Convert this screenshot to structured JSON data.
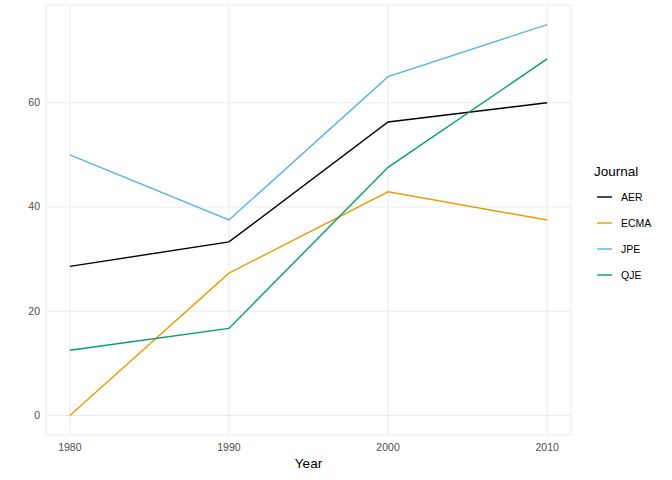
{
  "chart_data": {
    "type": "line",
    "x_label": "Year",
    "legend_title": "Journal",
    "x": [
      1980,
      1990,
      2000,
      2010
    ],
    "series": [
      {
        "name": "AER",
        "color": "#000000",
        "values": [
          28.6,
          33.3,
          56.3,
          60.0
        ]
      },
      {
        "name": "ECMA",
        "color": "#E69F00",
        "values": [
          0,
          27.3,
          42.9,
          37.5
        ]
      },
      {
        "name": "JPE",
        "color": "#56B4E9",
        "values": [
          50,
          37.5,
          65,
          75
        ]
      },
      {
        "name": "QJE",
        "color": "#009E73",
        "values": [
          12.5,
          16.7,
          47.6,
          68.4
        ]
      }
    ],
    "xlim": [
      1978.5,
      2011.5
    ],
    "xticks": [
      1980,
      1990,
      2000,
      2010
    ],
    "ylim": [
      -3.75,
      78.75
    ],
    "yticks": [
      0,
      20,
      40,
      60
    ],
    "grid": true,
    "legend": "right"
  }
}
